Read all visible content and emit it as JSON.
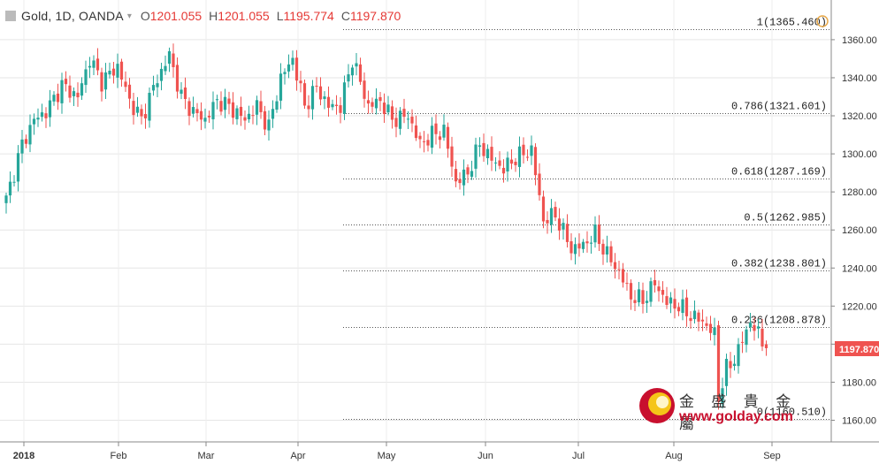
{
  "header": {
    "title": "Gold, 1D, OANDA",
    "open_label": "O",
    "open": "1201.055",
    "high_label": "H",
    "high": "1201.055",
    "low_label": "L",
    "low": "1195.774",
    "close_label": "C",
    "close": "1197.870"
  },
  "price_tag": "1197.870",
  "watermark": {
    "name": "金 盛 貴 金 屬",
    "url": "www.golday.com"
  },
  "colors": {
    "up": "#26a69a",
    "down": "#ef5350",
    "price_tag": "#ef5350",
    "fib": "#555555"
  },
  "chart_data": {
    "type": "candlestick",
    "y_ticks": [
      "1160.00",
      "1180.00",
      "1200.00",
      "1220.00",
      "1240.00",
      "1260.00",
      "1280.00",
      "1300.00",
      "1320.00",
      "1340.00",
      "1360.00"
    ],
    "x_ticks": [
      "2018",
      "Feb",
      "Mar",
      "Apr",
      "May",
      "Jun",
      "Jul",
      "Aug",
      "Sep"
    ],
    "ylim": [
      1155,
      1372
    ],
    "grid": true,
    "fib_levels": [
      {
        "label": "1(1365.460)",
        "value": 1365.46
      },
      {
        "label": "0.786(1321.601)",
        "value": 1321.601
      },
      {
        "label": "0.618(1287.169)",
        "value": 1287.169
      },
      {
        "label": "0.5(1262.985)",
        "value": 1262.985
      },
      {
        "label": "0.382(1238.801)",
        "value": 1238.801
      },
      {
        "label": "0.236(1208.878)",
        "value": 1208.878
      },
      {
        "label": "0(1160.510)",
        "value": 1160.51
      }
    ],
    "waypoints": [
      [
        0,
        1276
      ],
      [
        4,
        1305
      ],
      [
        7,
        1318
      ],
      [
        10,
        1322
      ],
      [
        14,
        1336
      ],
      [
        18,
        1330
      ],
      [
        21,
        1350
      ],
      [
        24,
        1338
      ],
      [
        28,
        1346
      ],
      [
        31,
        1328
      ],
      [
        34,
        1318
      ],
      [
        37,
        1335
      ],
      [
        41,
        1352
      ],
      [
        44,
        1330
      ],
      [
        47,
        1322
      ],
      [
        50,
        1318
      ],
      [
        53,
        1328
      ],
      [
        56,
        1325
      ],
      [
        60,
        1318
      ],
      [
        63,
        1325
      ],
      [
        66,
        1314
      ],
      [
        69,
        1340
      ],
      [
        72,
        1350
      ],
      [
        75,
        1325
      ],
      [
        78,
        1335
      ],
      [
        81,
        1325
      ],
      [
        84,
        1325
      ],
      [
        87,
        1350
      ],
      [
        91,
        1325
      ],
      [
        94,
        1328
      ],
      [
        97,
        1318
      ],
      [
        101,
        1320
      ],
      [
        104,
        1305
      ],
      [
        107,
        1310
      ],
      [
        110,
        1312
      ],
      [
        113,
        1285
      ],
      [
        116,
        1290
      ],
      [
        119,
        1305
      ],
      [
        122,
        1297
      ],
      [
        125,
        1292
      ],
      [
        128,
        1298
      ],
      [
        132,
        1302
      ],
      [
        135,
        1265
      ],
      [
        138,
        1268
      ],
      [
        142,
        1250
      ],
      [
        145,
        1252
      ],
      [
        148,
        1258
      ],
      [
        151,
        1247
      ],
      [
        154,
        1238
      ],
      [
        157,
        1225
      ],
      [
        160,
        1223
      ],
      [
        163,
        1232
      ],
      [
        166,
        1222
      ],
      [
        169,
        1220
      ],
      [
        172,
        1215
      ],
      [
        175,
        1212
      ],
      [
        178,
        1205
      ],
      [
        179,
        1172
      ],
      [
        181,
        1187
      ],
      [
        183,
        1192
      ],
      [
        185,
        1202
      ],
      [
        187,
        1212
      ],
      [
        189,
        1205
      ],
      [
        191,
        1198
      ]
    ]
  }
}
